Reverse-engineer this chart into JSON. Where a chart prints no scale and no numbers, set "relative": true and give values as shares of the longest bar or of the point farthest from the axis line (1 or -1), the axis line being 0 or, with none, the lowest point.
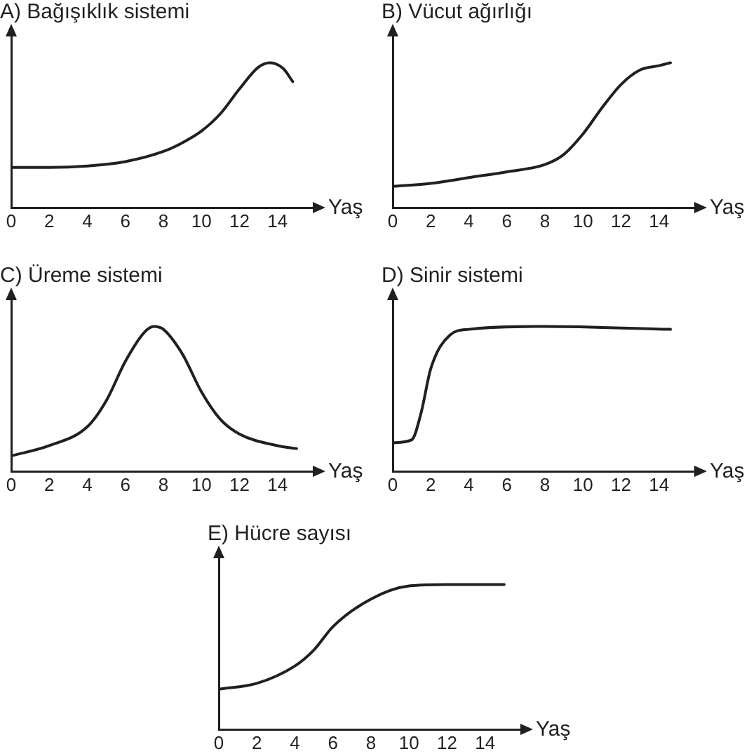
{
  "chart_data": [
    {
      "type": "line",
      "title": "A) Bağışıklık sistemi",
      "xlabel": "Yaş",
      "relative": true,
      "xlim": [
        0,
        16
      ],
      "xticks": [
        0,
        2,
        4,
        6,
        8,
        10,
        12,
        14
      ],
      "tick_labels": "x",
      "marker": "none",
      "color": "#231f20",
      "x": [
        0,
        2,
        4,
        6,
        8,
        9,
        10,
        11,
        12,
        13,
        13.6,
        14.3,
        14.8
      ],
      "values": [
        0.28,
        0.28,
        0.29,
        0.32,
        0.39,
        0.45,
        0.53,
        0.65,
        0.82,
        0.97,
        1,
        0.96,
        0.87
      ]
    },
    {
      "type": "line",
      "title": "B) Vücut ağırlığı",
      "xlabel": "Yaş",
      "relative": true,
      "xlim": [
        0,
        16
      ],
      "xticks": [
        0,
        2,
        4,
        6,
        8,
        10,
        12,
        14
      ],
      "tick_labels": "x",
      "marker": "none",
      "color": "#231f20",
      "x": [
        0,
        2,
        4,
        6,
        8,
        9,
        10,
        11,
        12,
        13,
        14,
        14.6
      ],
      "values": [
        0.15,
        0.17,
        0.21,
        0.25,
        0.3,
        0.37,
        0.51,
        0.69,
        0.85,
        0.95,
        0.98,
        1
      ]
    },
    {
      "type": "line",
      "title": "C) Üreme sistemi",
      "xlabel": "Yaş",
      "relative": true,
      "xlim": [
        0,
        16
      ],
      "xticks": [
        0,
        2,
        4,
        6,
        8,
        10,
        12,
        14
      ],
      "tick_labels": "x",
      "marker": "none",
      "color": "#231f20",
      "x": [
        0,
        2,
        4,
        5,
        6,
        7,
        7.5,
        8,
        9,
        10,
        11,
        12,
        14,
        15
      ],
      "values": [
        0.11,
        0.18,
        0.31,
        0.49,
        0.76,
        0.96,
        1,
        0.98,
        0.81,
        0.55,
        0.36,
        0.26,
        0.18,
        0.16
      ]
    },
    {
      "type": "line",
      "title": "D) Sinir sistemi",
      "xlabel": "Yaş",
      "relative": true,
      "xlim": [
        0,
        16
      ],
      "xticks": [
        0,
        2,
        4,
        6,
        8,
        10,
        12,
        14
      ],
      "tick_labels": "x",
      "marker": "none",
      "color": "#231f20",
      "x": [
        0,
        1,
        1.5,
        2,
        3,
        4,
        8,
        14.6
      ],
      "values": [
        0.2,
        0.22,
        0.41,
        0.71,
        0.94,
        0.98,
        1,
        0.98
      ]
    },
    {
      "type": "line",
      "title": "E) Hücre sayısı",
      "xlabel": "Yaş",
      "relative": true,
      "xlim": [
        0,
        16
      ],
      "xticks": [
        0,
        2,
        4,
        6,
        8,
        10,
        12,
        14
      ],
      "tick_labels": "x",
      "marker": "none",
      "color": "#231f20",
      "x": [
        0,
        2,
        4,
        5,
        6,
        8,
        10,
        12,
        15
      ],
      "values": [
        0.28,
        0.32,
        0.44,
        0.55,
        0.71,
        0.9,
        0.99,
        1,
        1
      ]
    }
  ]
}
